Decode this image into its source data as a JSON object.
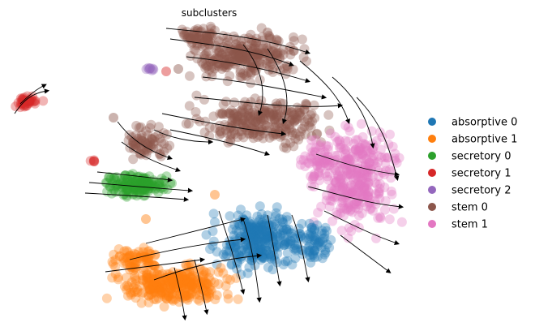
{
  "chart_data": {
    "type": "scatter",
    "title": "subclusters",
    "xlabel": "",
    "ylabel": "",
    "grid": false,
    "axes_visible": false,
    "legend_position": "right",
    "overlay": "streamlines",
    "streamline_color": "#000000",
    "legend": [
      {
        "name": "absorptive 0",
        "color": "#1f77b4"
      },
      {
        "name": "absorptive 1",
        "color": "#ff7f0e"
      },
      {
        "name": "secretory 0",
        "color": "#2ca02c"
      },
      {
        "name": "secretory 1",
        "color": "#d62728"
      },
      {
        "name": "secretory 2",
        "color": "#9467bd"
      },
      {
        "name": "stem 0",
        "color": "#8c564b"
      },
      {
        "name": "stem 1",
        "color": "#e377c2"
      }
    ]
  }
}
